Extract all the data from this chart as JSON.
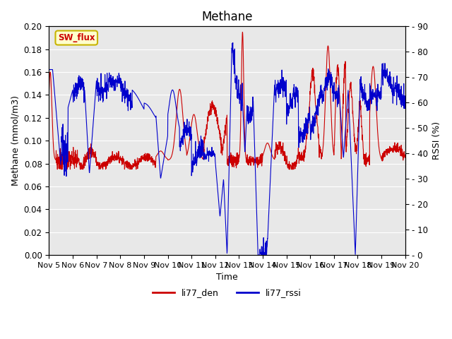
{
  "title": "Methane",
  "ylabel_left": "Methane (mmol/m3)",
  "ylabel_right": "RSSI (%)",
  "xlabel": "Time",
  "ylim_left": [
    0.0,
    0.2
  ],
  "ylim_right": [
    0,
    90
  ],
  "yticks_left": [
    0.0,
    0.02,
    0.04,
    0.06,
    0.08,
    0.1,
    0.12,
    0.14,
    0.16,
    0.18,
    0.2
  ],
  "yticks_right": [
    0,
    10,
    20,
    30,
    40,
    50,
    60,
    70,
    80,
    90
  ],
  "xtick_labels": [
    "Nov 5",
    "Nov 6",
    "Nov 7",
    "Nov 8",
    "Nov 9",
    "Nov 10",
    "Nov 11",
    "Nov 12",
    "Nov 13",
    "Nov 14",
    "Nov 15",
    "Nov 16",
    "Nov 17",
    "Nov 18",
    "Nov 19",
    "Nov 20"
  ],
  "color_red": "#cc0000",
  "color_blue": "#0000cc",
  "legend_entries": [
    "li77_den",
    "li77_rssi"
  ],
  "sw_flux_label": "SW_flux",
  "sw_flux_bg": "#ffffcc",
  "sw_flux_border": "#c8b400",
  "plot_bg": "#e8e8e8",
  "fig_bg": "#ffffff",
  "grid_color": "#ffffff",
  "title_fontsize": 12,
  "label_fontsize": 9,
  "tick_fontsize": 8.5
}
